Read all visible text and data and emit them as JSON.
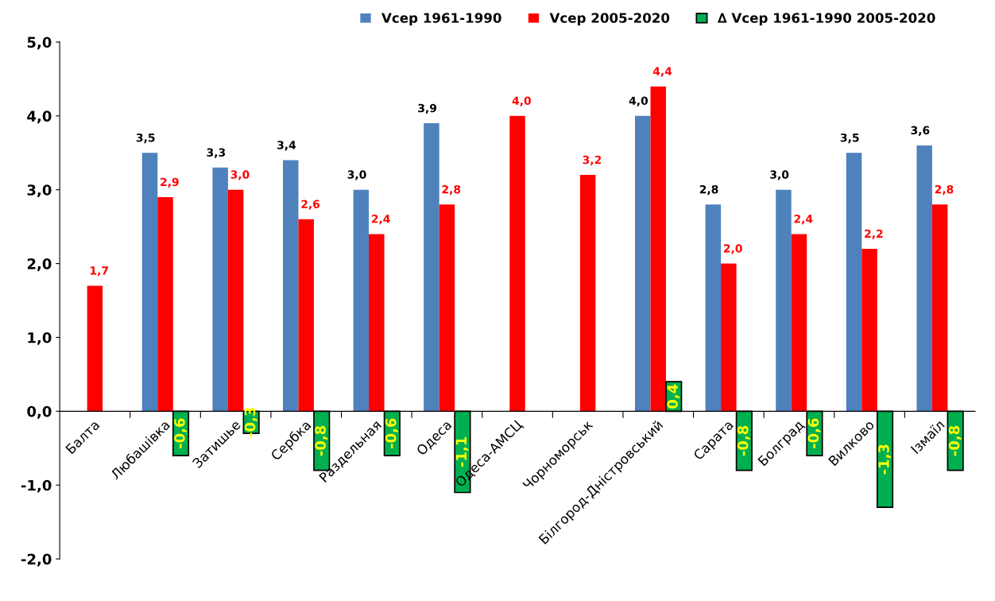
{
  "chart_data": {
    "type": "bar",
    "categories": [
      "Балта",
      "Любашівка",
      "Затишье",
      "Сербка",
      "Раздельная",
      "Одеса",
      "Одеса-АМСЦ",
      "Чорноморськ",
      "Білгород-Дністровський",
      "Сарата",
      "Болград",
      "Вилково",
      "Ізмаїл"
    ],
    "series": [
      {
        "name": "Vсер 1961-1990",
        "color": "#4f81bd",
        "values": [
          null,
          3.5,
          3.3,
          3.4,
          3.0,
          3.9,
          null,
          null,
          4.0,
          2.8,
          3.0,
          3.5,
          3.6
        ],
        "value_labels": [
          null,
          "3,5",
          "3,3",
          "3,4",
          "3,0",
          "3,9",
          null,
          null,
          "4,0",
          "2,8",
          "3,0",
          "3,5",
          "3,6"
        ]
      },
      {
        "name": "Vсер 2005-2020",
        "color": "#ff0000",
        "values": [
          1.7,
          2.9,
          3.0,
          2.6,
          2.4,
          2.8,
          4.0,
          3.2,
          4.4,
          2.0,
          2.4,
          2.2,
          2.8
        ],
        "value_labels": [
          "1,7",
          "2,9",
          "3,0",
          "2,6",
          "2,4",
          "2,8",
          "4,0",
          "3,2",
          "4,4",
          "2,0",
          "2,4",
          "2,2",
          "2,8"
        ]
      },
      {
        "name": "∆ Vсер 1961-1990 2005-2020",
        "color": "#00b050",
        "values": [
          null,
          -0.6,
          -0.3,
          -0.8,
          -0.6,
          -1.1,
          null,
          null,
          0.4,
          -0.8,
          -0.6,
          -1.3,
          -0.8
        ],
        "value_labels": [
          null,
          "-0,6",
          "-0,3",
          "-0,8",
          "-0,6",
          "-1,1",
          null,
          null,
          "0,4",
          "-0,8",
          "-0,6",
          "-1,3",
          "-0,8"
        ]
      }
    ],
    "ylim": [
      -2.0,
      5.0
    ],
    "yticks": [
      {
        "value": -2.0,
        "label": "-2,0"
      },
      {
        "value": -1.0,
        "label": "-1,0"
      },
      {
        "value": 0.0,
        "label": "0,0"
      },
      {
        "value": 1.0,
        "label": "1,0"
      },
      {
        "value": 2.0,
        "label": "2,0"
      },
      {
        "value": 3.0,
        "label": "3,0"
      },
      {
        "value": 4.0,
        "label": "4,0"
      },
      {
        "value": 5.0,
        "label": "5,0"
      }
    ],
    "grid": false,
    "legend": "top right"
  }
}
